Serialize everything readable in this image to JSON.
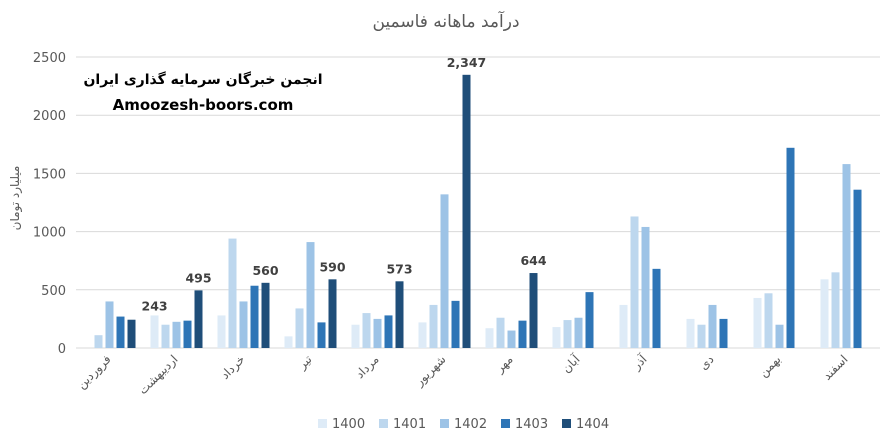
{
  "chart_data": {
    "type": "bar",
    "title": "درآمد ماهانه فاسمین",
    "ylabel": "میلیارد تومان",
    "xlabel": "",
    "ylim": [
      0,
      2500
    ],
    "yticks": [
      0,
      500,
      1000,
      1500,
      2000,
      2500
    ],
    "grid": true,
    "legend_position": "bottom",
    "categories": [
      "فروردین",
      "اردیبهشت",
      "خرداد",
      "تیر",
      "مرداد",
      "شهریور",
      "مهر",
      "آبان",
      "آذر",
      "دی",
      "بهمن",
      "اسفند"
    ],
    "series": [
      {
        "name": "1400",
        "color": "#deebf7",
        "values": [
          0,
          280,
          280,
          100,
          200,
          220,
          170,
          180,
          370,
          250,
          430,
          590
        ]
      },
      {
        "name": "1401",
        "color": "#bdd7ee",
        "values": [
          110,
          200,
          940,
          340,
          300,
          370,
          260,
          240,
          1130,
          200,
          470,
          650
        ]
      },
      {
        "name": "1402",
        "color": "#9dc3e6",
        "values": [
          400,
          225,
          400,
          910,
          250,
          1320,
          150,
          260,
          1040,
          370,
          200,
          1580
        ]
      },
      {
        "name": "1403",
        "color": "#2e75b6",
        "values": [
          270,
          235,
          535,
          220,
          280,
          405,
          235,
          480,
          680,
          250,
          1720,
          1360
        ]
      },
      {
        "name": "1404",
        "color": "#1f4e79",
        "values": [
          243,
          495,
          560,
          590,
          573,
          2347,
          644,
          null,
          null,
          null,
          null,
          null
        ]
      }
    ],
    "data_labels": [
      "243",
      "495",
      "560",
      "590",
      "573",
      "2,347",
      "644"
    ]
  },
  "watermark": {
    "line1": "انجمن خبرگان سرمایه گذاری ایران",
    "line2": "Amoozesh-boors.com"
  }
}
